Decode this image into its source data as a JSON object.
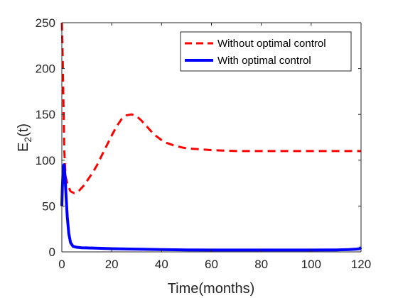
{
  "chart_data": {
    "type": "line",
    "title": "",
    "xlabel": "Time(months)",
    "ylabel_main": "E",
    "ylabel_sub": "2",
    "ylabel_tail": "(t)",
    "xlim": [
      0,
      120
    ],
    "ylim": [
      0,
      250
    ],
    "xticks": [
      0,
      20,
      40,
      60,
      80,
      100,
      120
    ],
    "yticks": [
      0,
      50,
      100,
      150,
      200,
      250
    ],
    "grid": false,
    "legend_position": "top-right",
    "series": [
      {
        "name": "Without optimal control",
        "color": "#ff0000",
        "style": "dashed",
        "x": [
          0,
          0.3,
          0.6,
          1.0,
          1.5,
          2.5,
          3.5,
          5,
          6,
          7,
          8,
          9,
          10,
          12,
          14,
          16,
          18,
          20,
          22,
          24,
          26,
          28,
          30,
          32,
          34,
          36,
          38,
          40,
          42,
          45,
          48,
          50,
          55,
          60,
          65,
          70,
          80,
          90,
          100,
          110,
          120
        ],
        "y": [
          250,
          215,
          170,
          110,
          82,
          72,
          66,
          64,
          65,
          67,
          70,
          73,
          77,
          85,
          94,
          105,
          116,
          127,
          137,
          145,
          149,
          150,
          148,
          143,
          137,
          131,
          126,
          122,
          119,
          116,
          114,
          113,
          112,
          111,
          110.5,
          110,
          110,
          110,
          110,
          110,
          110
        ]
      },
      {
        "name": "With optimal control",
        "color": "#0000ff",
        "style": "solid",
        "x": [
          0,
          0.2,
          0.5,
          0.8,
          1.0,
          1.3,
          1.7,
          2.2,
          2.8,
          3.5,
          4.5,
          6,
          8,
          10,
          20,
          30,
          40,
          50,
          60,
          70,
          80,
          90,
          100,
          110,
          115,
          118,
          119.5,
          120
        ],
        "y": [
          50,
          70,
          90,
          95,
          92,
          82,
          60,
          38,
          20,
          10,
          6,
          5,
          4.5,
          4.3,
          3.5,
          3,
          2.5,
          2.2,
          2,
          2,
          2,
          2,
          2,
          2.2,
          2.5,
          3,
          3.5,
          5
        ]
      }
    ]
  }
}
